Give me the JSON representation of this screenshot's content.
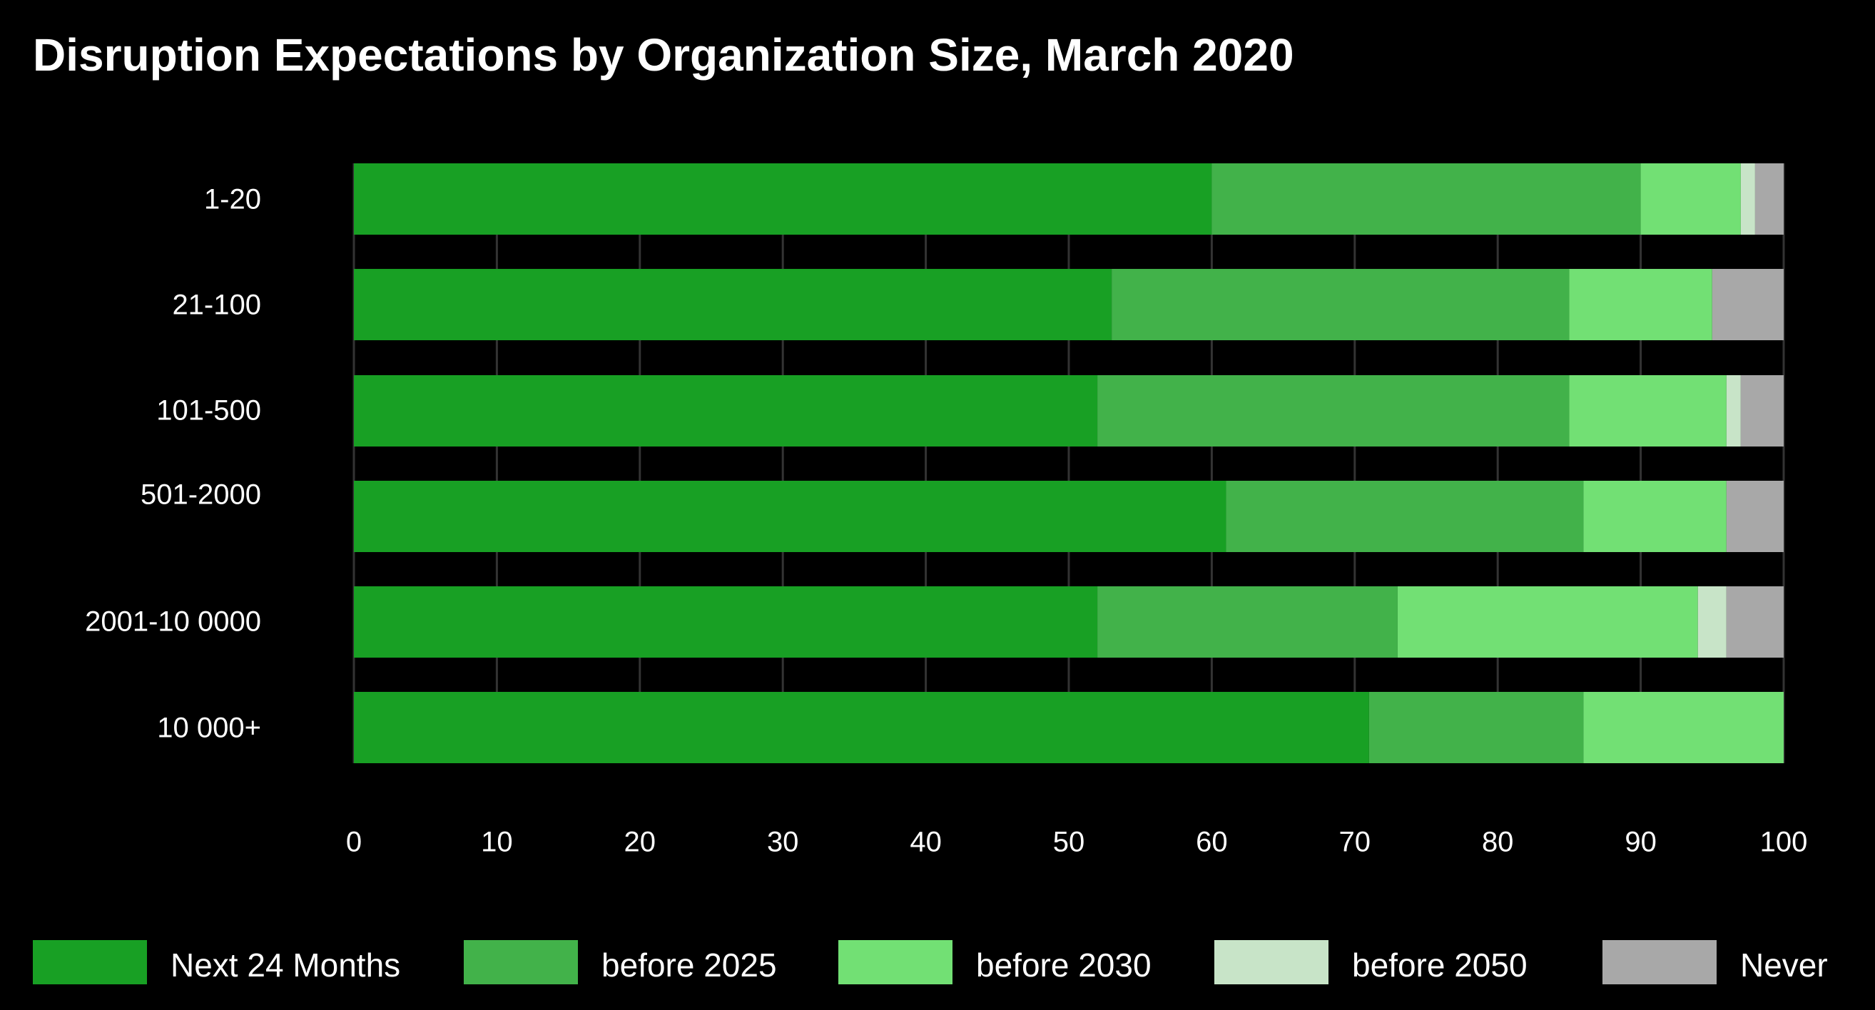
{
  "chart_data": {
    "type": "bar",
    "orientation": "horizontal",
    "stacked": true,
    "title": "Disruption Expectations by Organization Size, March 2020",
    "xlabel": "",
    "ylabel": "",
    "xlim": [
      0,
      100
    ],
    "xticks": [
      "0",
      "10",
      "20",
      "30",
      "40",
      "50",
      "60",
      "70",
      "80",
      "90",
      "100"
    ],
    "grid": "vertical",
    "legend_position": "bottom",
    "categories": [
      "1-20",
      "21-100",
      "101-500",
      "501-2000",
      "2001-10 0000",
      "10 000+"
    ],
    "series": [
      {
        "name": "Next 24 Months",
        "color": "#18a024",
        "values": [
          60,
          53,
          52,
          61,
          52,
          71
        ]
      },
      {
        "name": "before 2025",
        "color": "#42b24a",
        "values": [
          30,
          32,
          33,
          25,
          21,
          15
        ]
      },
      {
        "name": "before 2030",
        "color": "#72e074",
        "values": [
          7,
          10,
          11,
          10,
          21,
          14
        ]
      },
      {
        "name": "before 2050",
        "color": "#c8e4c8",
        "values": [
          1,
          0,
          1,
          0,
          2,
          0
        ]
      },
      {
        "name": "Never",
        "color": "#a8a8a8",
        "values": [
          2,
          5,
          3,
          4,
          4,
          0
        ]
      }
    ]
  },
  "colors": {
    "background": "#000000",
    "gridline": "#333333",
    "text": "#ffffff"
  }
}
